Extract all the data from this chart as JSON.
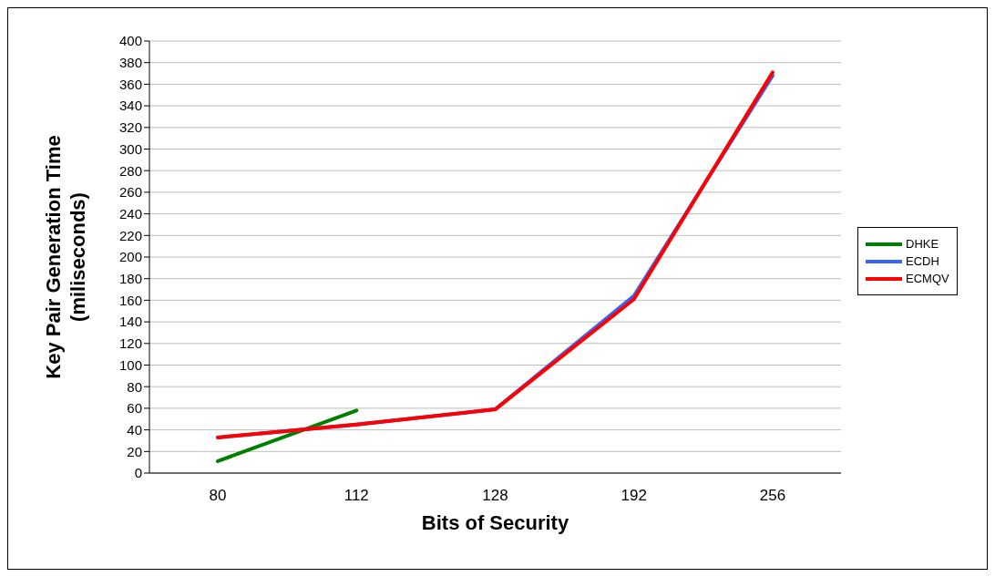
{
  "chart_data": {
    "type": "line",
    "xlabel": "Bits of Security",
    "ylabel": "Key Pair Generation Time\n(miliseconds)",
    "categories": [
      "80",
      "112",
      "128",
      "192",
      "256"
    ],
    "series": [
      {
        "name": "DHKE",
        "color": "#008000",
        "values": [
          11,
          58,
          null,
          null,
          null
        ]
      },
      {
        "name": "ECDH",
        "color": "#3366ff",
        "values": [
          33,
          45,
          59,
          164,
          368
        ]
      },
      {
        "name": "ECMQV",
        "color": "#ff0000",
        "values": [
          33,
          45,
          59,
          161,
          371
        ]
      }
    ],
    "ylim": [
      0,
      400
    ],
    "yticks": [
      0,
      20,
      40,
      60,
      80,
      100,
      120,
      140,
      160,
      180,
      200,
      220,
      240,
      260,
      280,
      300,
      320,
      340,
      360,
      380,
      400
    ],
    "grid": "y",
    "legend": "right",
    "marker": "none",
    "line_style": "solid"
  }
}
